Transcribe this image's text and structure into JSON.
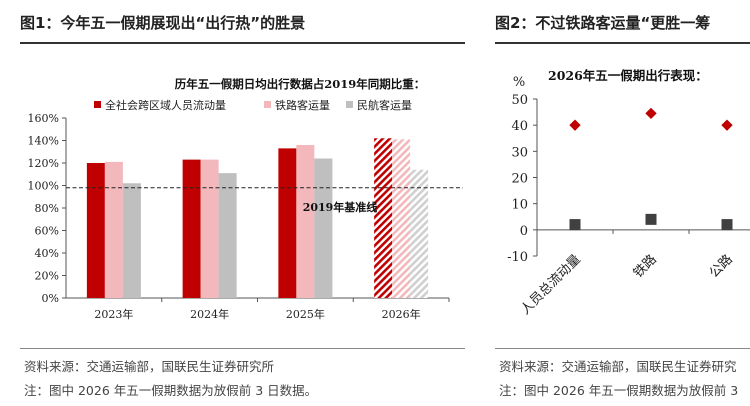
{
  "figure1": {
    "title": "图1：今年五一假期展现出“出行热”的胜景",
    "source": "资料来源：交通运输部，国联民生证券研究所",
    "note": "注：图中 2026 年五一假期数据为放假前 3 日数据。"
  },
  "figure2": {
    "title": "图2：不过铁路客运量“更胜一筹",
    "source": "资料来源：交通运输部，国联民生证券研究",
    "note": "注：图中 2026 年五一假期数据为放假前 3"
  },
  "colors": {
    "cross_region": "#c00000",
    "railway": "#f2b8bc",
    "aviation": "#bfbfbf",
    "marker_2026": "#c00000",
    "marker_historical": "#404040"
  },
  "chart_data": [
    {
      "type": "bar",
      "title": "历年五一假期日均出行数据占2019年同期比重：",
      "categories": [
        "2023年",
        "2024年",
        "2025年",
        "2026年"
      ],
      "series": [
        {
          "name": "全社会跨区域人员流动量",
          "values": [
            120,
            123,
            133,
            142
          ]
        },
        {
          "name": "铁路客运量",
          "values": [
            121,
            123,
            136,
            141
          ]
        },
        {
          "name": "民航客运量",
          "values": [
            102,
            111,
            124,
            114
          ]
        }
      ],
      "yticks": [
        "0%",
        "20%",
        "40%",
        "60%",
        "80%",
        "100%",
        "120%",
        "140%",
        "160%"
      ],
      "ylim": [
        0,
        160
      ],
      "baseline": {
        "value": 98,
        "label": "2019年基准线"
      },
      "hatched_category": "2026年",
      "legend": "top"
    },
    {
      "type": "scatter",
      "title": "2026年五一假期出行表现：",
      "ylabel": "%",
      "categories": [
        "人员总流动量",
        "铁路",
        "公路"
      ],
      "series": [
        {
          "values": [
            40,
            44.5,
            40
          ]
        },
        {
          "values": [
            2,
            4,
            2
          ]
        }
      ],
      "yticks": [
        "-10",
        "0",
        "10",
        "20",
        "30",
        "40",
        "50"
      ],
      "ylim": [
        -10,
        50
      ]
    }
  ]
}
